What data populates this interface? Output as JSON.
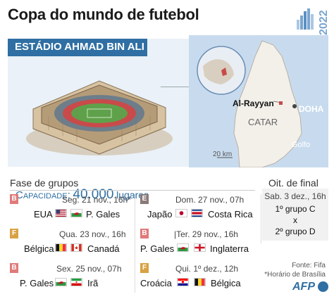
{
  "header": {
    "title": "Copa do mundo de futebol",
    "logo_year": "2022"
  },
  "stadium": {
    "name": "ESTÁDIO AHMAD BIN ALI",
    "capacity_label": "Capacidade:",
    "capacity_value": "40.000",
    "capacity_unit": "lugares"
  },
  "map": {
    "city": "Al-Rayyan",
    "capital": "DOHA",
    "country": "CATAR",
    "gulf": "Golfo",
    "scale": "20 km"
  },
  "groups": {
    "title": "Fase de grupos",
    "matches": [
      {
        "group": "B",
        "date": "Seg. 21 nov., 16h*",
        "home": "EUA",
        "away": "P. Gales",
        "home_flag": "usa-flag-icon",
        "away_flag": "wales-flag-icon"
      },
      {
        "group": "E",
        "date": "Dom. 27 nov., 07h",
        "home": "Japão",
        "away": "Costa Rica",
        "home_flag": "japan-flag-icon",
        "away_flag": "costa-rica-flag-icon"
      },
      {
        "group": "F",
        "date": "Qua. 23 nov., 16h",
        "home": "Bélgica",
        "away": "Canadá",
        "home_flag": "belgium-flag-icon",
        "away_flag": "canada-flag-icon"
      },
      {
        "group": "B",
        "date": "|Ter. 29 nov., 16h",
        "home": "P. Gales",
        "away": "Inglaterra",
        "home_flag": "wales-flag-icon",
        "away_flag": "england-flag-icon"
      },
      {
        "group": "B",
        "date": "Sex. 25 nov., 07h",
        "home": "P. Gales",
        "away": "Irã",
        "home_flag": "wales-flag-icon",
        "away_flag": "iran-flag-icon"
      },
      {
        "group": "F",
        "date": "Qui. 1º dez., 12h",
        "home": "Croácia",
        "away": "Bélgica",
        "home_flag": "croatia-flag-icon",
        "away_flag": "belgium-flag-icon"
      }
    ]
  },
  "quarterfinal": {
    "title": "Oit. de final",
    "date": "Sab. 3 dez., 16h",
    "team1": "1º grupo C",
    "vs": "x",
    "team2": "2º grupo D"
  },
  "footer": {
    "source": "Fonte: Fifa",
    "timezone_note": "*Horário de Brasília",
    "agency": "AFP"
  },
  "colors": {
    "accent": "#2f6fa3",
    "group_b": "#e07a7a",
    "group_e": "#8a7a78",
    "group_f": "#d8a244"
  }
}
